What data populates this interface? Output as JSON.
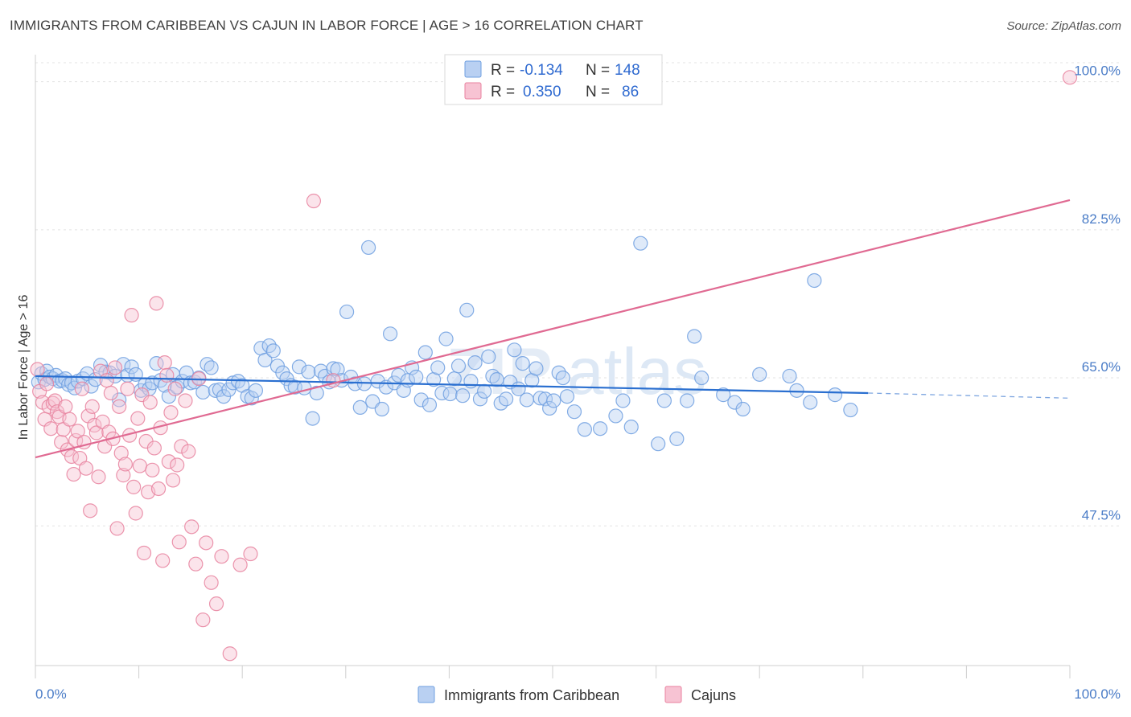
{
  "header": {
    "title": "IMMIGRANTS FROM CARIBBEAN VS CAJUN IN LABOR FORCE | AGE > 16 CORRELATION CHART",
    "source": "Source: ZipAtlas.com"
  },
  "watermark": {
    "zip": "ZIP",
    "atlas": "atlas"
  },
  "legend": {
    "rows": [
      {
        "r_label": "R =",
        "r_value": "-0.134",
        "n_label": "N =",
        "n_value": "148",
        "color": "#6f9fe0",
        "fill": "#b9d0f2"
      },
      {
        "r_label": "R =",
        "r_value": "0.350",
        "n_label": "N =",
        "n_value": "86",
        "color": "#e8829f",
        "fill": "#f7c3d3"
      }
    ]
  },
  "chart_data": {
    "type": "scatter",
    "title": "IMMIGRANTS FROM CARIBBEAN VS CAJUN IN LABOR FORCE | AGE > 16 CORRELATION CHART",
    "xlabel": "",
    "ylabel": "In Labor Force | Age > 16",
    "xlim": [
      0,
      100
    ],
    "ylim": [
      31,
      103
    ],
    "x_tick_labels": [
      "0.0%",
      "100.0%"
    ],
    "y_ticks": [
      47.5,
      65.0,
      82.5,
      100.0
    ],
    "y_tick_labels": [
      "47.5%",
      "65.0%",
      "82.5%",
      "100.0%"
    ],
    "grid": true,
    "legend_position": "top-center",
    "series": [
      {
        "name": "Immigrants from Caribbean",
        "color": "#6f9fe0",
        "fill": "#b9d0f2",
        "trend": {
          "x": [
            0,
            80.5
          ],
          "y": [
            65.2,
            63.2
          ],
          "dashed_to": [
            100,
            62.6
          ]
        },
        "points": [
          [
            0.3,
            64.5
          ],
          [
            0.6,
            65.5
          ],
          [
            0.9,
            64.8
          ],
          [
            1.1,
            65.8
          ],
          [
            1.4,
            65.1
          ],
          [
            1.7,
            64.9
          ],
          [
            2.0,
            65.3
          ],
          [
            2.3,
            64.6
          ],
          [
            2.6,
            64.7
          ],
          [
            2.9,
            64.9
          ],
          [
            3.2,
            64.2
          ],
          [
            3.5,
            64.4
          ],
          [
            3.8,
            63.8
          ],
          [
            4.1,
            64.6
          ],
          [
            4.6,
            64.9
          ],
          [
            5.0,
            65.5
          ],
          [
            5.4,
            64.0
          ],
          [
            5.8,
            64.8
          ],
          [
            6.3,
            66.5
          ],
          [
            6.8,
            65.7
          ],
          [
            7.2,
            65.6
          ],
          [
            7.7,
            65.2
          ],
          [
            8.1,
            62.4
          ],
          [
            8.5,
            66.6
          ],
          [
            8.9,
            65.3
          ],
          [
            9.3,
            66.3
          ],
          [
            9.7,
            65.4
          ],
          [
            10.2,
            63.5
          ],
          [
            10.6,
            64.2
          ],
          [
            11.0,
            63.7
          ],
          [
            11.3,
            64.4
          ],
          [
            11.7,
            66.7
          ],
          [
            12.1,
            64.7
          ],
          [
            12.5,
            64.1
          ],
          [
            12.9,
            62.8
          ],
          [
            13.3,
            65.4
          ],
          [
            13.7,
            63.9
          ],
          [
            14.2,
            64.6
          ],
          [
            14.6,
            65.6
          ],
          [
            15.0,
            64.4
          ],
          [
            15.4,
            64.5
          ],
          [
            15.8,
            65.0
          ],
          [
            16.2,
            63.3
          ],
          [
            16.6,
            66.6
          ],
          [
            17.0,
            66.2
          ],
          [
            17.4,
            63.5
          ],
          [
            17.8,
            63.6
          ],
          [
            18.2,
            62.8
          ],
          [
            18.7,
            63.6
          ],
          [
            19.1,
            64.4
          ],
          [
            19.6,
            64.6
          ],
          [
            20.0,
            64.1
          ],
          [
            20.5,
            62.8
          ],
          [
            20.9,
            62.6
          ],
          [
            21.3,
            63.5
          ],
          [
            21.8,
            68.5
          ],
          [
            22.2,
            67.1
          ],
          [
            22.6,
            68.8
          ],
          [
            23.0,
            68.2
          ],
          [
            23.4,
            66.4
          ],
          [
            23.9,
            65.6
          ],
          [
            24.3,
            64.9
          ],
          [
            24.7,
            64.1
          ],
          [
            25.1,
            63.9
          ],
          [
            25.5,
            66.3
          ],
          [
            26.0,
            63.8
          ],
          [
            26.4,
            65.7
          ],
          [
            26.8,
            60.2
          ],
          [
            27.2,
            63.2
          ],
          [
            27.6,
            65.8
          ],
          [
            28.0,
            65.2
          ],
          [
            28.4,
            64.5
          ],
          [
            28.8,
            66.1
          ],
          [
            29.2,
            66.0
          ],
          [
            29.6,
            64.7
          ],
          [
            30.1,
            72.8
          ],
          [
            30.5,
            65.1
          ],
          [
            30.9,
            64.3
          ],
          [
            31.4,
            61.5
          ],
          [
            31.8,
            64.3
          ],
          [
            32.2,
            80.4
          ],
          [
            32.6,
            62.2
          ],
          [
            33.1,
            64.6
          ],
          [
            33.5,
            61.3
          ],
          [
            33.9,
            63.9
          ],
          [
            34.3,
            70.2
          ],
          [
            34.7,
            64.4
          ],
          [
            35.1,
            65.3
          ],
          [
            35.6,
            63.5
          ],
          [
            36.0,
            64.7
          ],
          [
            36.4,
            66.2
          ],
          [
            36.8,
            65.1
          ],
          [
            37.3,
            62.4
          ],
          [
            37.7,
            68.0
          ],
          [
            38.1,
            61.8
          ],
          [
            38.5,
            64.8
          ],
          [
            38.9,
            66.2
          ],
          [
            39.3,
            63.2
          ],
          [
            39.7,
            69.6
          ],
          [
            40.1,
            63.1
          ],
          [
            40.5,
            64.9
          ],
          [
            40.9,
            66.4
          ],
          [
            41.3,
            62.9
          ],
          [
            41.7,
            73.0
          ],
          [
            42.1,
            64.6
          ],
          [
            42.5,
            66.8
          ],
          [
            43.0,
            62.5
          ],
          [
            43.4,
            63.4
          ],
          [
            43.8,
            67.5
          ],
          [
            44.2,
            65.2
          ],
          [
            44.6,
            64.8
          ],
          [
            45.0,
            62.0
          ],
          [
            45.5,
            62.5
          ],
          [
            45.9,
            64.5
          ],
          [
            46.3,
            68.3
          ],
          [
            46.7,
            63.7
          ],
          [
            47.1,
            66.7
          ],
          [
            47.5,
            62.4
          ],
          [
            48.0,
            64.7
          ],
          [
            48.4,
            66.1
          ],
          [
            48.8,
            62.6
          ],
          [
            49.3,
            62.5
          ],
          [
            49.7,
            61.4
          ],
          [
            50.1,
            62.3
          ],
          [
            50.6,
            65.6
          ],
          [
            51.0,
            65.0
          ],
          [
            51.4,
            62.8
          ],
          [
            52.1,
            61.0
          ],
          [
            53.1,
            58.9
          ],
          [
            54.6,
            59.0
          ],
          [
            56.1,
            60.5
          ],
          [
            56.8,
            62.3
          ],
          [
            57.6,
            59.2
          ],
          [
            58.5,
            80.9
          ],
          [
            60.2,
            57.2
          ],
          [
            60.8,
            62.3
          ],
          [
            62.0,
            57.8
          ],
          [
            63.0,
            62.3
          ],
          [
            63.7,
            69.9
          ],
          [
            64.4,
            65.0
          ],
          [
            66.5,
            63.0
          ],
          [
            67.6,
            62.1
          ],
          [
            68.4,
            61.3
          ],
          [
            70.0,
            65.4
          ],
          [
            72.9,
            65.2
          ],
          [
            73.6,
            63.5
          ],
          [
            74.9,
            62.1
          ],
          [
            75.3,
            76.5
          ],
          [
            77.3,
            63.0
          ],
          [
            78.8,
            61.2
          ]
        ]
      },
      {
        "name": "Cajuns",
        "color": "#e8829f",
        "fill": "#f7c3d3",
        "trend": {
          "x": [
            0,
            100
          ],
          "y": [
            55.6,
            86.0
          ]
        },
        "points": [
          [
            0.2,
            66.0
          ],
          [
            0.4,
            63.4
          ],
          [
            0.7,
            62.1
          ],
          [
            0.9,
            60.1
          ],
          [
            1.1,
            64.3
          ],
          [
            1.3,
            61.6
          ],
          [
            1.5,
            59.0
          ],
          [
            1.7,
            62.0
          ],
          [
            1.9,
            62.3
          ],
          [
            2.1,
            61.0
          ],
          [
            2.3,
            60.4
          ],
          [
            2.5,
            57.4
          ],
          [
            2.7,
            58.9
          ],
          [
            2.9,
            61.6
          ],
          [
            3.1,
            56.5
          ],
          [
            3.3,
            60.1
          ],
          [
            3.5,
            55.7
          ],
          [
            3.7,
            53.6
          ],
          [
            3.9,
            57.6
          ],
          [
            4.1,
            58.7
          ],
          [
            4.3,
            55.5
          ],
          [
            4.5,
            63.7
          ],
          [
            4.7,
            57.4
          ],
          [
            4.9,
            54.3
          ],
          [
            5.1,
            60.5
          ],
          [
            5.3,
            49.3
          ],
          [
            5.5,
            61.6
          ],
          [
            5.7,
            59.4
          ],
          [
            5.9,
            58.5
          ],
          [
            6.1,
            53.3
          ],
          [
            6.3,
            65.8
          ],
          [
            6.5,
            59.8
          ],
          [
            6.7,
            56.9
          ],
          [
            6.9,
            64.7
          ],
          [
            7.1,
            58.6
          ],
          [
            7.3,
            63.2
          ],
          [
            7.5,
            57.8
          ],
          [
            7.7,
            66.2
          ],
          [
            7.9,
            47.2
          ],
          [
            8.1,
            61.6
          ],
          [
            8.3,
            56.1
          ],
          [
            8.5,
            53.5
          ],
          [
            8.7,
            54.8
          ],
          [
            8.9,
            63.7
          ],
          [
            9.1,
            58.2
          ],
          [
            9.3,
            72.4
          ],
          [
            9.5,
            52.1
          ],
          [
            9.7,
            49.0
          ],
          [
            9.9,
            60.2
          ],
          [
            10.1,
            54.6
          ],
          [
            10.3,
            63.0
          ],
          [
            10.5,
            44.3
          ],
          [
            10.7,
            57.5
          ],
          [
            10.9,
            51.5
          ],
          [
            11.1,
            62.1
          ],
          [
            11.3,
            54.1
          ],
          [
            11.5,
            56.7
          ],
          [
            11.7,
            73.8
          ],
          [
            11.9,
            51.9
          ],
          [
            12.1,
            59.1
          ],
          [
            12.3,
            43.4
          ],
          [
            12.5,
            66.8
          ],
          [
            12.7,
            65.3
          ],
          [
            12.9,
            55.1
          ],
          [
            13.1,
            60.9
          ],
          [
            13.3,
            52.9
          ],
          [
            13.5,
            63.7
          ],
          [
            13.7,
            54.7
          ],
          [
            13.9,
            45.6
          ],
          [
            14.1,
            56.9
          ],
          [
            14.5,
            62.3
          ],
          [
            14.8,
            56.3
          ],
          [
            15.1,
            47.4
          ],
          [
            15.5,
            43.0
          ],
          [
            15.8,
            64.9
          ],
          [
            16.2,
            36.4
          ],
          [
            16.5,
            45.5
          ],
          [
            17.0,
            40.8
          ],
          [
            17.5,
            38.3
          ],
          [
            18.0,
            43.9
          ],
          [
            18.8,
            32.4
          ],
          [
            19.8,
            42.9
          ],
          [
            20.8,
            44.2
          ],
          [
            26.9,
            85.9
          ],
          [
            28.8,
            64.7
          ],
          [
            100.0,
            100.5
          ]
        ]
      }
    ]
  },
  "bottom_legend": {
    "items": [
      {
        "label": "Immigrants from Caribbean",
        "color": "#6f9fe0",
        "fill": "#b9d0f2"
      },
      {
        "label": "Cajuns",
        "color": "#e8829f",
        "fill": "#f7c3d3"
      }
    ]
  }
}
